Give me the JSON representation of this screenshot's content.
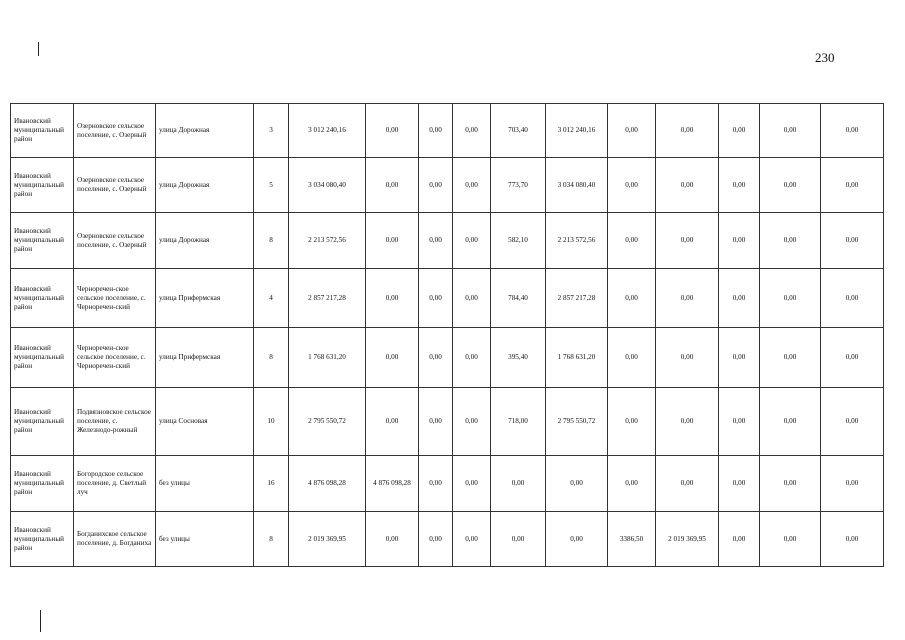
{
  "page_number": "230",
  "rows": [
    {
      "district": "Ивановский муниципальный район",
      "settlement": "Озерновское сельское поселение, с. Озерный",
      "street": "улица Дорожная",
      "house": "3",
      "total": "3 012 240,16",
      "c6": "0,00",
      "c7": "0,00",
      "c8": "0,00",
      "area": "703,40",
      "c10": "3 012 240,16",
      "c11": "0,00",
      "c12": "0,00",
      "c13": "0,00",
      "c14": "0,00",
      "c15": "0,00"
    },
    {
      "district": "Ивановский муниципальный район",
      "settlement": "Озерновское сельское поселение, с. Озерный",
      "street": "улица Дорожная",
      "house": "5",
      "total": "3 034 080,40",
      "c6": "0,00",
      "c7": "0,00",
      "c8": "0,00",
      "area": "773,70",
      "c10": "3 034 080,40",
      "c11": "0,00",
      "c12": "0,00",
      "c13": "0,00",
      "c14": "0,00",
      "c15": "0,00"
    },
    {
      "district": "Ивановский муниципальный район",
      "settlement": "Озерновское сельское поселение, с. Озерный",
      "street": "улица Дорожная",
      "house": "8",
      "total": "2 213 572,56",
      "c6": "0,00",
      "c7": "0,00",
      "c8": "0,00",
      "area": "582,10",
      "c10": "2 213 572,56",
      "c11": "0,00",
      "c12": "0,00",
      "c13": "0,00",
      "c14": "0,00",
      "c15": "0,00"
    },
    {
      "district": "Ивановский муниципальный район",
      "settlement": "Черноречен-ское сельское поселение, с. Черноречен-ский",
      "street": "улица Прифермская",
      "house": "4",
      "total": "2 857 217,28",
      "c6": "0,00",
      "c7": "0,00",
      "c8": "0,00",
      "area": "784,40",
      "c10": "2 857 217,28",
      "c11": "0,00",
      "c12": "0,00",
      "c13": "0,00",
      "c14": "0,00",
      "c15": "0,00"
    },
    {
      "district": "Ивановский муниципальный район",
      "settlement": "Черноречен-ское сельское поселение, с. Черноречен-ский",
      "street": "улица Прифермская",
      "house": "8",
      "total": "1 768 631,20",
      "c6": "0,00",
      "c7": "0,00",
      "c8": "0,00",
      "area": "395,40",
      "c10": "1 768 631,20",
      "c11": "0,00",
      "c12": "0,00",
      "c13": "0,00",
      "c14": "0,00",
      "c15": "0,00"
    },
    {
      "district": "Ивановский муниципальный район",
      "settlement": "Подвязновское сельское поселение, с. Железнодо-рожный",
      "street": "улица Сосновая",
      "house": "10",
      "total": "2 795 550,72",
      "c6": "0,00",
      "c7": "0,00",
      "c8": "0,00",
      "area": "718,00",
      "c10": "2 795 550,72",
      "c11": "0,00",
      "c12": "0,00",
      "c13": "0,00",
      "c14": "0,00",
      "c15": "0,00"
    },
    {
      "district": "Ивановский муниципальный район",
      "settlement": "Богородское сельское поселение, д. Светлый луч",
      "street": "без улицы",
      "house": "16",
      "total": "4 876 098,28",
      "c6": "4 876 098,28",
      "c7": "0,00",
      "c8": "0,00",
      "area": "0,00",
      "c10": "0,00",
      "c11": "0,00",
      "c12": "0,00",
      "c13": "0,00",
      "c14": "0,00",
      "c15": "0,00"
    },
    {
      "district": "Ивановский муниципальный район",
      "settlement": "Богданихское сельское поселение, д. Богданиха",
      "street": "без улицы",
      "house": "8",
      "total": "2 019 369,95",
      "c6": "0,00",
      "c7": "0,00",
      "c8": "0,00",
      "area": "0,00",
      "c10": "0,00",
      "c11": "3386,50",
      "c12": "2 019 369,95",
      "c13": "0,00",
      "c14": "0,00",
      "c15": "0,00"
    }
  ]
}
